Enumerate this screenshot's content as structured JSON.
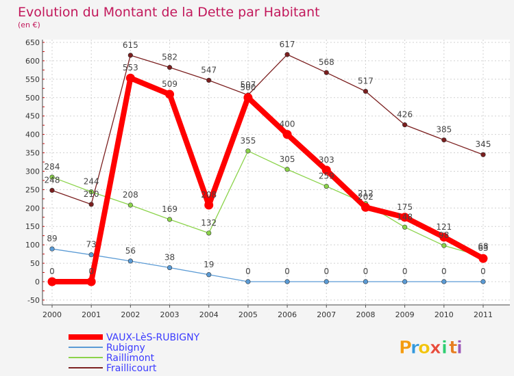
{
  "chart_data": {
    "type": "line",
    "title": "Evolution du Montant de la Dette par Habitant",
    "subtitle": "(en €)",
    "x": [
      "2000",
      "2001",
      "2002",
      "2003",
      "2004",
      "2005",
      "2006",
      "2007",
      "2008",
      "2009",
      "2010",
      "2011"
    ],
    "yticks": [
      "-50",
      "0",
      "50",
      "100",
      "150",
      "200",
      "250",
      "300",
      "350",
      "400",
      "450",
      "500",
      "550",
      "600",
      "650"
    ],
    "ylim": [
      -50,
      650
    ],
    "grid": true,
    "legend_position": "bottom-left",
    "series": [
      {
        "name": "Fraillicourt",
        "color": "#7b1f1f",
        "values": [
          248,
          210,
          615,
          582,
          547,
          507,
          617,
          568,
          517,
          426,
          385,
          345
        ],
        "labels": [
          "248",
          "210",
          "615",
          "582",
          "547",
          "507",
          "617",
          "568",
          "517",
          "426",
          "385",
          "345"
        ]
      },
      {
        "name": "Raillimont",
        "color": "#8bd34a",
        "values": [
          284,
          244,
          208,
          169,
          132,
          355,
          305,
          259,
          212,
          148,
          98,
          68
        ],
        "labels": [
          "284",
          "244",
          "208",
          "169",
          "132",
          "355",
          "305",
          "259",
          "212",
          "148",
          "98",
          "68"
        ]
      },
      {
        "name": "Rubigny",
        "color": "#5b9bd5",
        "values": [
          89,
          73,
          56,
          38,
          19,
          0,
          0,
          0,
          0,
          0,
          0,
          0
        ],
        "labels": [
          "89",
          "73",
          "56",
          "38",
          "19",
          "0",
          "0",
          "0",
          "0",
          "0",
          "0",
          "0"
        ]
      },
      {
        "name": "VAUX-LèS-RUBIGNY",
        "color": "#ff0000",
        "values": [
          0,
          0,
          553,
          509,
          208,
          500,
          400,
          303,
          202,
          175,
          121,
          63
        ],
        "labels": [
          "0",
          "0",
          "553",
          "509",
          "208",
          "500",
          "400",
          "303",
          "202",
          "175",
          "121",
          "63"
        ]
      }
    ],
    "legend_order": [
      "VAUX-LèS-RUBIGNY",
      "Rubigny",
      "Raillimont",
      "Fraillicourt"
    ]
  },
  "branding": {
    "letters": [
      "P",
      "r",
      "o",
      "x",
      "i",
      "t",
      "i"
    ],
    "colors": [
      "#f39c12",
      "#3498db",
      "#f1c40f",
      "#e74c3c",
      "#2ecc71",
      "#e67e22",
      "#9b59b6"
    ]
  }
}
